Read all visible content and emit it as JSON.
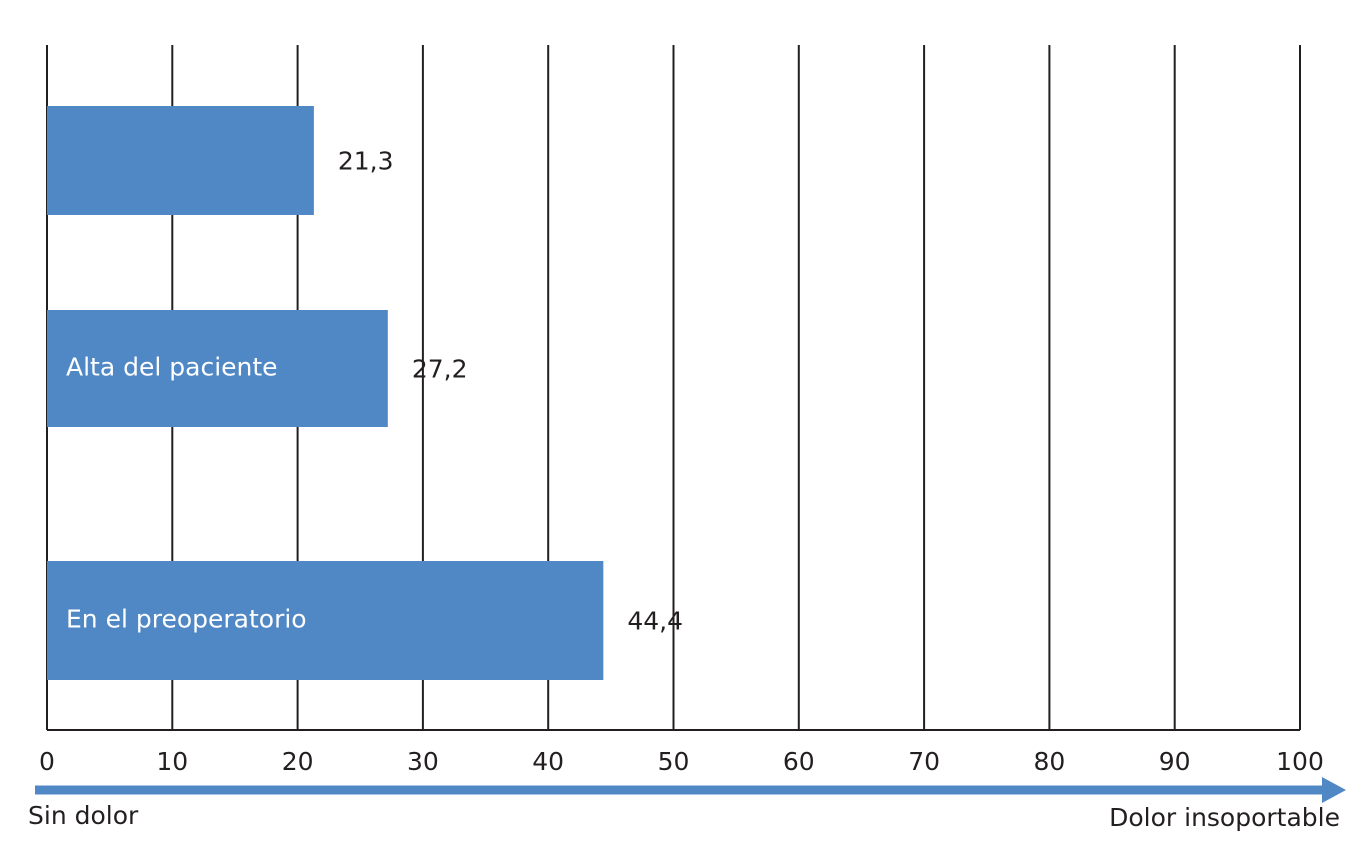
{
  "chart_data": {
    "type": "bar",
    "orientation": "horizontal",
    "categories": [
      null,
      "Alta del paciente",
      "En el preoperatorio"
    ],
    "values": [
      21.3,
      27.2,
      44.4
    ],
    "value_labels": [
      "21,3",
      "27,2",
      "44,4"
    ],
    "color": "#5088c6",
    "xlim": [
      0,
      100
    ],
    "xticks": [
      0,
      10,
      20,
      30,
      40,
      50,
      60,
      70,
      80,
      90,
      100
    ],
    "grid": true,
    "axis_start_label": "Sin dolor",
    "axis_end_label": "Dolor insoportable"
  }
}
